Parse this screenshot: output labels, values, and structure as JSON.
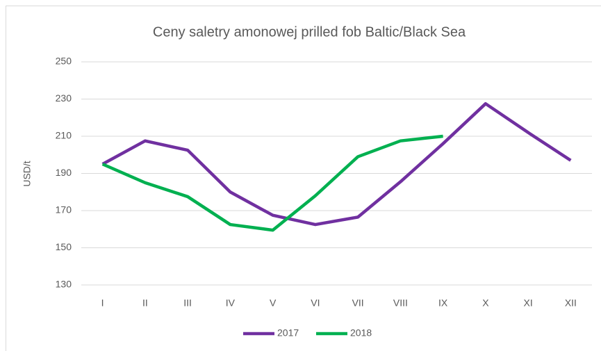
{
  "chart_data": {
    "type": "line",
    "title": "Ceny saletry amonowej prilled fob Baltic/Black Sea",
    "y_label": "USD/t",
    "categories": [
      "I",
      "II",
      "III",
      "IV",
      "V",
      "VI",
      "VII",
      "VIII",
      "IX",
      "X",
      "XI",
      "XII"
    ],
    "series": [
      {
        "name": "2017",
        "color": "#7030a0",
        "values": [
          195,
          207.5,
          202.5,
          180,
          167.5,
          162.5,
          166.5,
          185.5,
          206,
          227.5,
          212,
          197
        ]
      },
      {
        "name": "2018",
        "color": "#00b050",
        "values": [
          195,
          185,
          177.5,
          162.5,
          159.5,
          178,
          199,
          207.5,
          210,
          null,
          null,
          null
        ]
      }
    ],
    "ylim": [
      130,
      250
    ],
    "yticks": [
      130,
      150,
      170,
      190,
      210,
      230,
      250
    ],
    "grid": true,
    "legend": "bottom"
  }
}
